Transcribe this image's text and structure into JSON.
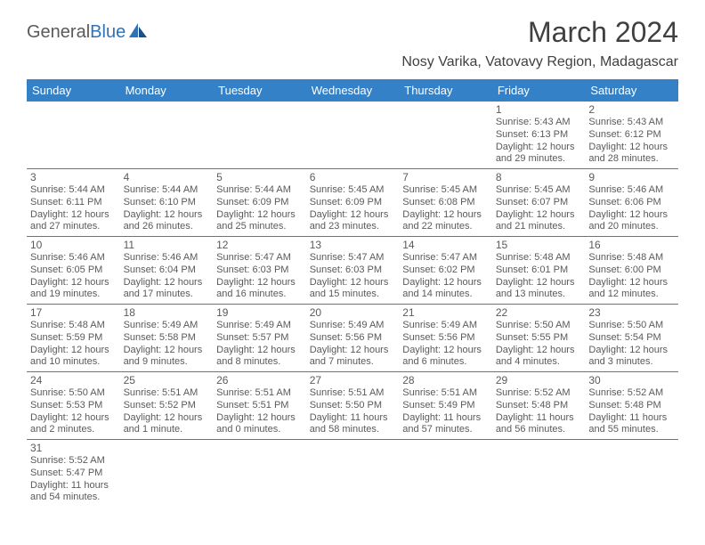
{
  "logo": {
    "part1": "General",
    "part2": "Blue"
  },
  "title": "March 2024",
  "location": "Nosy Varika, Vatovavy Region, Madagascar",
  "colors": {
    "header_bg": "#3481c8",
    "header_text": "#ffffff",
    "text": "#5a5a5a",
    "border": "#3481c8",
    "logo_accent": "#2f72b8"
  },
  "dayHeaders": [
    "Sunday",
    "Monday",
    "Tuesday",
    "Wednesday",
    "Thursday",
    "Friday",
    "Saturday"
  ],
  "weeks": [
    [
      null,
      null,
      null,
      null,
      null,
      {
        "n": "1",
        "sr": "Sunrise: 5:43 AM",
        "ss": "Sunset: 6:13 PM",
        "dl": "Daylight: 12 hours and 29 minutes."
      },
      {
        "n": "2",
        "sr": "Sunrise: 5:43 AM",
        "ss": "Sunset: 6:12 PM",
        "dl": "Daylight: 12 hours and 28 minutes."
      }
    ],
    [
      {
        "n": "3",
        "sr": "Sunrise: 5:44 AM",
        "ss": "Sunset: 6:11 PM",
        "dl": "Daylight: 12 hours and 27 minutes."
      },
      {
        "n": "4",
        "sr": "Sunrise: 5:44 AM",
        "ss": "Sunset: 6:10 PM",
        "dl": "Daylight: 12 hours and 26 minutes."
      },
      {
        "n": "5",
        "sr": "Sunrise: 5:44 AM",
        "ss": "Sunset: 6:09 PM",
        "dl": "Daylight: 12 hours and 25 minutes."
      },
      {
        "n": "6",
        "sr": "Sunrise: 5:45 AM",
        "ss": "Sunset: 6:09 PM",
        "dl": "Daylight: 12 hours and 23 minutes."
      },
      {
        "n": "7",
        "sr": "Sunrise: 5:45 AM",
        "ss": "Sunset: 6:08 PM",
        "dl": "Daylight: 12 hours and 22 minutes."
      },
      {
        "n": "8",
        "sr": "Sunrise: 5:45 AM",
        "ss": "Sunset: 6:07 PM",
        "dl": "Daylight: 12 hours and 21 minutes."
      },
      {
        "n": "9",
        "sr": "Sunrise: 5:46 AM",
        "ss": "Sunset: 6:06 PM",
        "dl": "Daylight: 12 hours and 20 minutes."
      }
    ],
    [
      {
        "n": "10",
        "sr": "Sunrise: 5:46 AM",
        "ss": "Sunset: 6:05 PM",
        "dl": "Daylight: 12 hours and 19 minutes."
      },
      {
        "n": "11",
        "sr": "Sunrise: 5:46 AM",
        "ss": "Sunset: 6:04 PM",
        "dl": "Daylight: 12 hours and 17 minutes."
      },
      {
        "n": "12",
        "sr": "Sunrise: 5:47 AM",
        "ss": "Sunset: 6:03 PM",
        "dl": "Daylight: 12 hours and 16 minutes."
      },
      {
        "n": "13",
        "sr": "Sunrise: 5:47 AM",
        "ss": "Sunset: 6:03 PM",
        "dl": "Daylight: 12 hours and 15 minutes."
      },
      {
        "n": "14",
        "sr": "Sunrise: 5:47 AM",
        "ss": "Sunset: 6:02 PM",
        "dl": "Daylight: 12 hours and 14 minutes."
      },
      {
        "n": "15",
        "sr": "Sunrise: 5:48 AM",
        "ss": "Sunset: 6:01 PM",
        "dl": "Daylight: 12 hours and 13 minutes."
      },
      {
        "n": "16",
        "sr": "Sunrise: 5:48 AM",
        "ss": "Sunset: 6:00 PM",
        "dl": "Daylight: 12 hours and 12 minutes."
      }
    ],
    [
      {
        "n": "17",
        "sr": "Sunrise: 5:48 AM",
        "ss": "Sunset: 5:59 PM",
        "dl": "Daylight: 12 hours and 10 minutes."
      },
      {
        "n": "18",
        "sr": "Sunrise: 5:49 AM",
        "ss": "Sunset: 5:58 PM",
        "dl": "Daylight: 12 hours and 9 minutes."
      },
      {
        "n": "19",
        "sr": "Sunrise: 5:49 AM",
        "ss": "Sunset: 5:57 PM",
        "dl": "Daylight: 12 hours and 8 minutes."
      },
      {
        "n": "20",
        "sr": "Sunrise: 5:49 AM",
        "ss": "Sunset: 5:56 PM",
        "dl": "Daylight: 12 hours and 7 minutes."
      },
      {
        "n": "21",
        "sr": "Sunrise: 5:49 AM",
        "ss": "Sunset: 5:56 PM",
        "dl": "Daylight: 12 hours and 6 minutes."
      },
      {
        "n": "22",
        "sr": "Sunrise: 5:50 AM",
        "ss": "Sunset: 5:55 PM",
        "dl": "Daylight: 12 hours and 4 minutes."
      },
      {
        "n": "23",
        "sr": "Sunrise: 5:50 AM",
        "ss": "Sunset: 5:54 PM",
        "dl": "Daylight: 12 hours and 3 minutes."
      }
    ],
    [
      {
        "n": "24",
        "sr": "Sunrise: 5:50 AM",
        "ss": "Sunset: 5:53 PM",
        "dl": "Daylight: 12 hours and 2 minutes."
      },
      {
        "n": "25",
        "sr": "Sunrise: 5:51 AM",
        "ss": "Sunset: 5:52 PM",
        "dl": "Daylight: 12 hours and 1 minute."
      },
      {
        "n": "26",
        "sr": "Sunrise: 5:51 AM",
        "ss": "Sunset: 5:51 PM",
        "dl": "Daylight: 12 hours and 0 minutes."
      },
      {
        "n": "27",
        "sr": "Sunrise: 5:51 AM",
        "ss": "Sunset: 5:50 PM",
        "dl": "Daylight: 11 hours and 58 minutes."
      },
      {
        "n": "28",
        "sr": "Sunrise: 5:51 AM",
        "ss": "Sunset: 5:49 PM",
        "dl": "Daylight: 11 hours and 57 minutes."
      },
      {
        "n": "29",
        "sr": "Sunrise: 5:52 AM",
        "ss": "Sunset: 5:48 PM",
        "dl": "Daylight: 11 hours and 56 minutes."
      },
      {
        "n": "30",
        "sr": "Sunrise: 5:52 AM",
        "ss": "Sunset: 5:48 PM",
        "dl": "Daylight: 11 hours and 55 minutes."
      }
    ],
    [
      {
        "n": "31",
        "sr": "Sunrise: 5:52 AM",
        "ss": "Sunset: 5:47 PM",
        "dl": "Daylight: 11 hours and 54 minutes."
      },
      null,
      null,
      null,
      null,
      null,
      null
    ]
  ]
}
